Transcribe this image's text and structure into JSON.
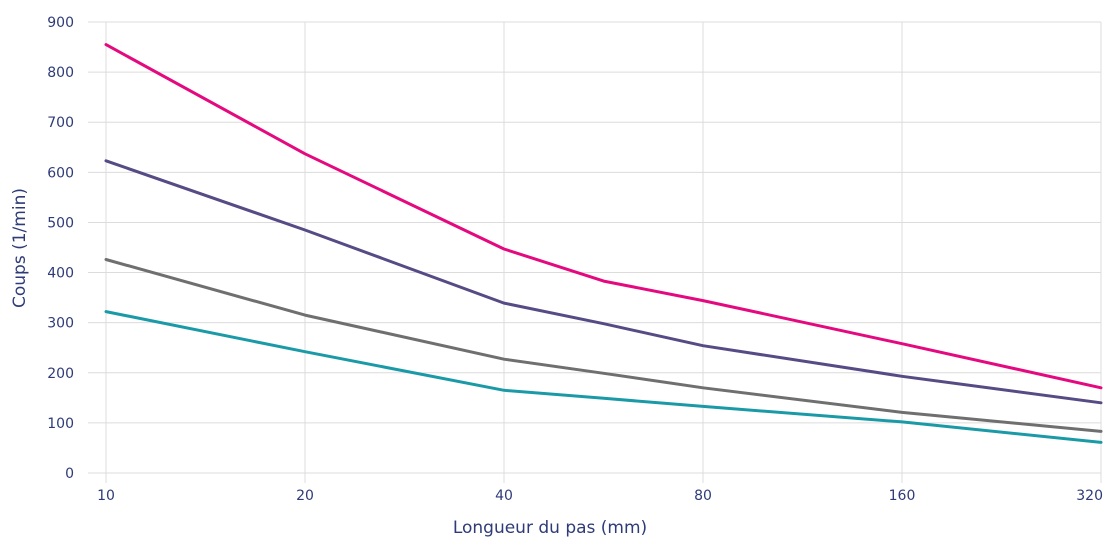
{
  "chart_data": {
    "type": "line",
    "xlabel": "Longueur du pas (mm)",
    "ylabel": "Coups (1/min)",
    "x_scale": "log2",
    "xlim": [
      10,
      320
    ],
    "ylim": [
      0,
      900
    ],
    "grid": true,
    "x_ticks": [
      "10",
      "20",
      "40",
      "80",
      "160",
      "320"
    ],
    "y_ticks": [
      "0",
      "100",
      "200",
      "300",
      "400",
      "500",
      "600",
      "700",
      "800",
      "900"
    ],
    "series": [
      {
        "color": "#e5097f",
        "points": [
          [
            10,
            855
          ],
          [
            20,
            637
          ],
          [
            40,
            447
          ],
          [
            56.6,
            383
          ],
          [
            80,
            344
          ],
          [
            160,
            258
          ],
          [
            320,
            170
          ]
        ]
      },
      {
        "color": "#574b85",
        "points": [
          [
            10,
            623
          ],
          [
            20,
            485
          ],
          [
            40,
            339
          ],
          [
            56.6,
            298
          ],
          [
            80,
            254
          ],
          [
            160,
            193
          ],
          [
            320,
            140
          ]
        ]
      },
      {
        "color": "#6f6f6f",
        "points": [
          [
            10,
            426
          ],
          [
            20,
            315
          ],
          [
            40,
            227
          ],
          [
            56.6,
            199
          ],
          [
            80,
            170
          ],
          [
            160,
            121
          ],
          [
            320,
            83
          ]
        ]
      },
      {
        "color": "#1a9aa7",
        "points": [
          [
            10,
            322
          ],
          [
            20,
            242
          ],
          [
            40,
            165
          ],
          [
            56.6,
            149
          ],
          [
            80,
            133
          ],
          [
            160,
            102
          ],
          [
            320,
            61
          ]
        ]
      }
    ]
  }
}
